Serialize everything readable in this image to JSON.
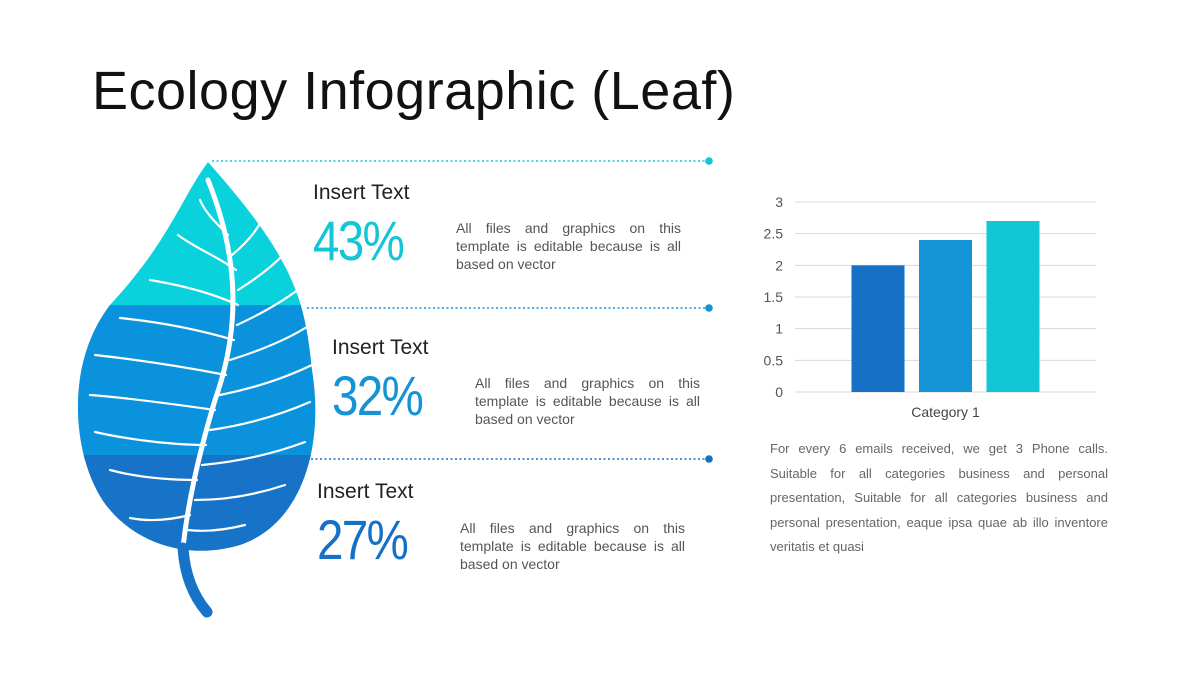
{
  "title": "Ecology Infographic (Leaf)",
  "colors": {
    "teal": "#13c6d6",
    "mid_blue": "#1493d6",
    "dark_blue": "#1570c6",
    "leaf_light": "#0ad2dc",
    "leaf_mid": "#0a93dc",
    "leaf_dark": "#1673c8"
  },
  "stats": [
    {
      "label": "Insert Text",
      "value": "43%",
      "description": "All files and graphics on this template is editable because is all based on vector",
      "color": "#13c6d6"
    },
    {
      "label": "Insert Text",
      "value": "32%",
      "description": "All files and graphics on this template is editable because is all based on vector",
      "color": "#1493d6"
    },
    {
      "label": "Insert Text",
      "value": "27%",
      "description": "All files and graphics on this template is editable because is all based on vector",
      "color": "#1570c6"
    }
  ],
  "chart_data": {
    "type": "bar",
    "categories": [
      "Category 1"
    ],
    "series": [
      {
        "values": [
          2.0
        ],
        "color": "#1570c6"
      },
      {
        "values": [
          2.4
        ],
        "color": "#1493d6"
      },
      {
        "values": [
          2.7
        ],
        "color": "#13c6d6"
      }
    ],
    "ylim": [
      0,
      3
    ],
    "yticks": [
      "0",
      "0.5",
      "1",
      "1.5",
      "2",
      "2.5",
      "3"
    ],
    "grid": true,
    "title": "",
    "xlabel": "",
    "ylabel": ""
  },
  "chart_paragraph": "For every 6 emails received, we get 3 Phone calls. Suitable for all categories business and personal presentation, Suitable for all categories business and personal presentation, eaque ipsa quae ab illo inventore veritatis et quasi"
}
